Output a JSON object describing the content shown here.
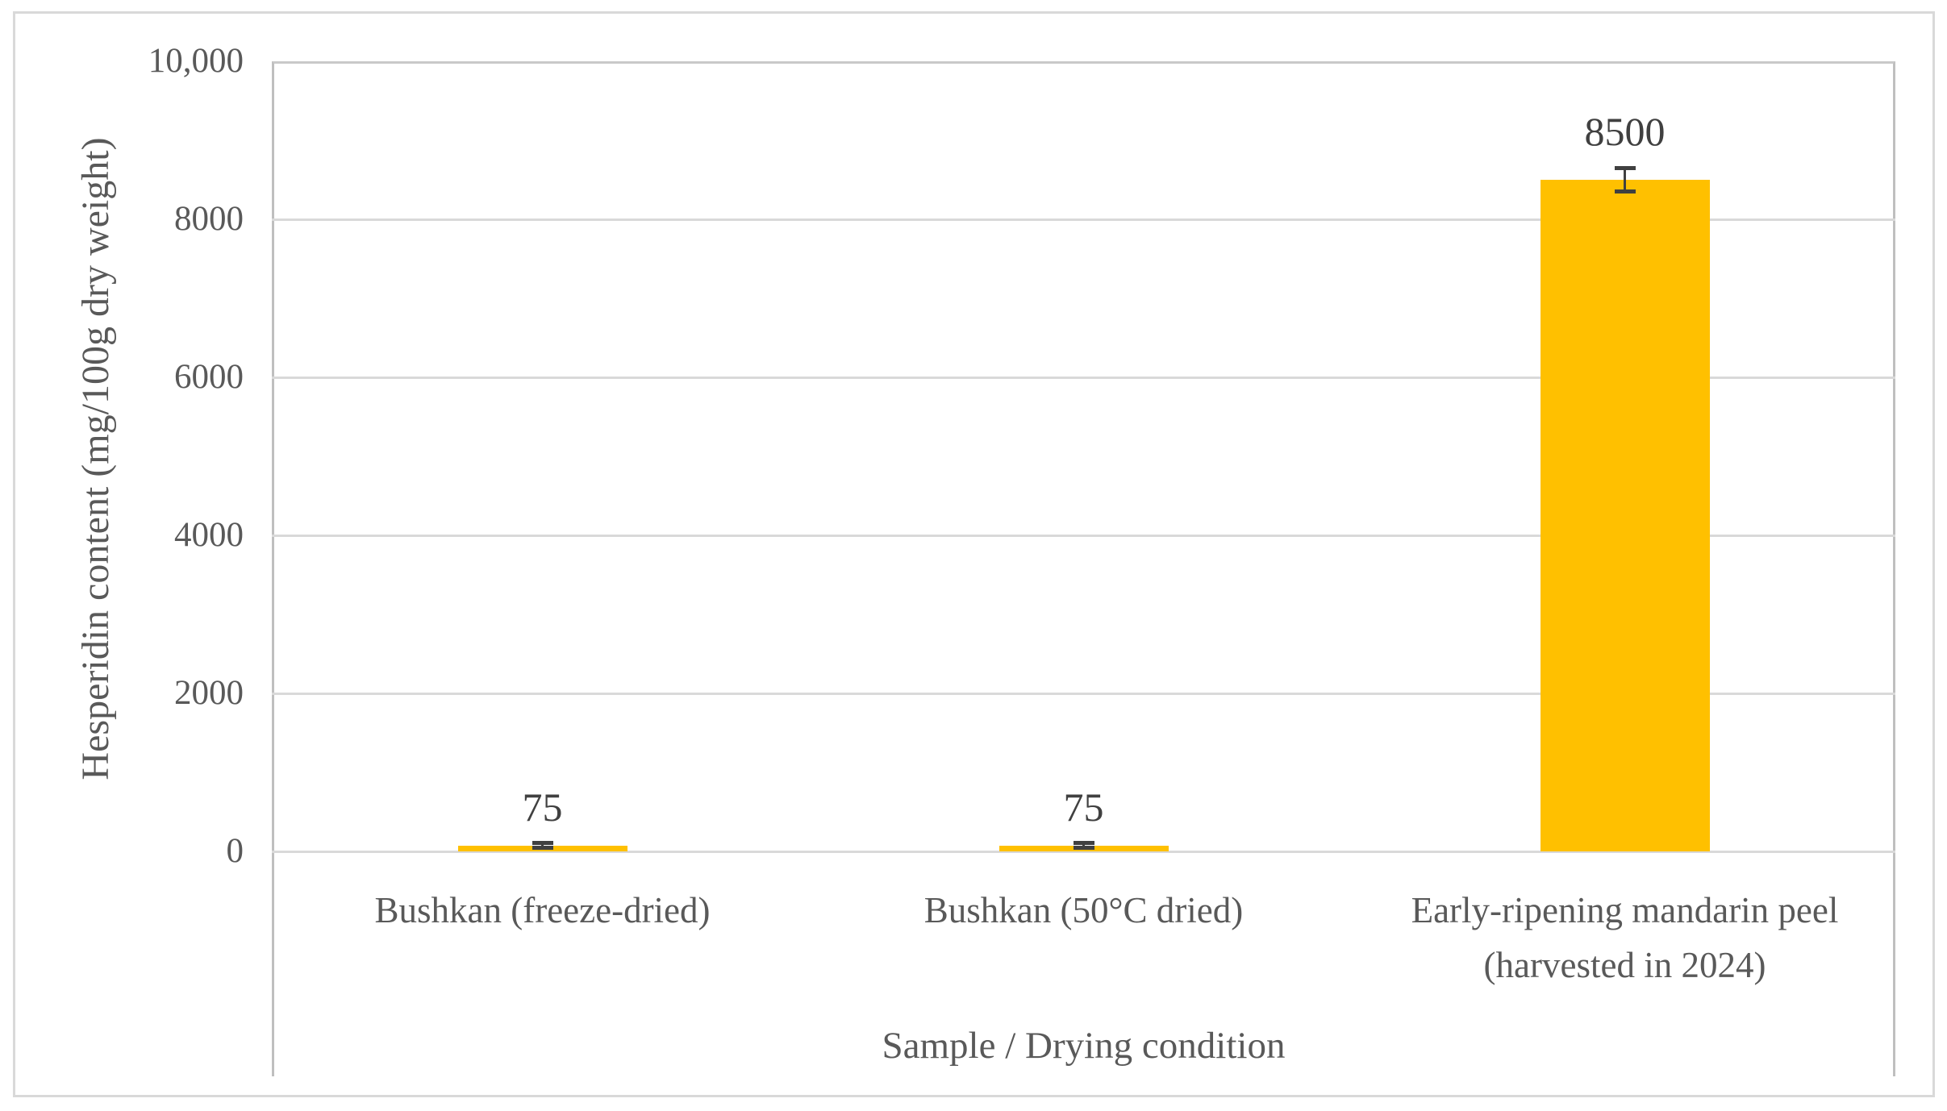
{
  "chart_data": {
    "type": "bar",
    "title": "",
    "categories": [
      "Bushkan (freeze-dried)",
      "Bushkan (50°C dried)",
      "Early-ripening mandarin peel (harvested in 2024)"
    ],
    "values": [
      75,
      75,
      8500
    ],
    "data_labels": [
      "75",
      "75",
      "8500"
    ],
    "error_bars": [
      30,
      30,
      150
    ],
    "xlabel": "Sample / Drying condition",
    "ylabel": "Hesperidin content (mg/100g dry weight)",
    "ylim": [
      0,
      10000
    ],
    "yticks": [
      {
        "label": "0",
        "value": 0
      },
      {
        "label": "2000",
        "value": 2000
      },
      {
        "label": "4000",
        "value": 4000
      },
      {
        "label": "6000",
        "value": 6000
      },
      {
        "label": "8000",
        "value": 8000
      },
      {
        "label": "10,000",
        "value": 10000
      }
    ],
    "grid": "horizontal",
    "legend": null,
    "colors": {
      "bar": "#FFC000",
      "error_bar": "#404040",
      "text": "#595959",
      "data_label_text": "#404040",
      "gridline": "#D9D9D9",
      "frame": "#BFBFBF",
      "outer_border": "#D9D9D9"
    }
  }
}
